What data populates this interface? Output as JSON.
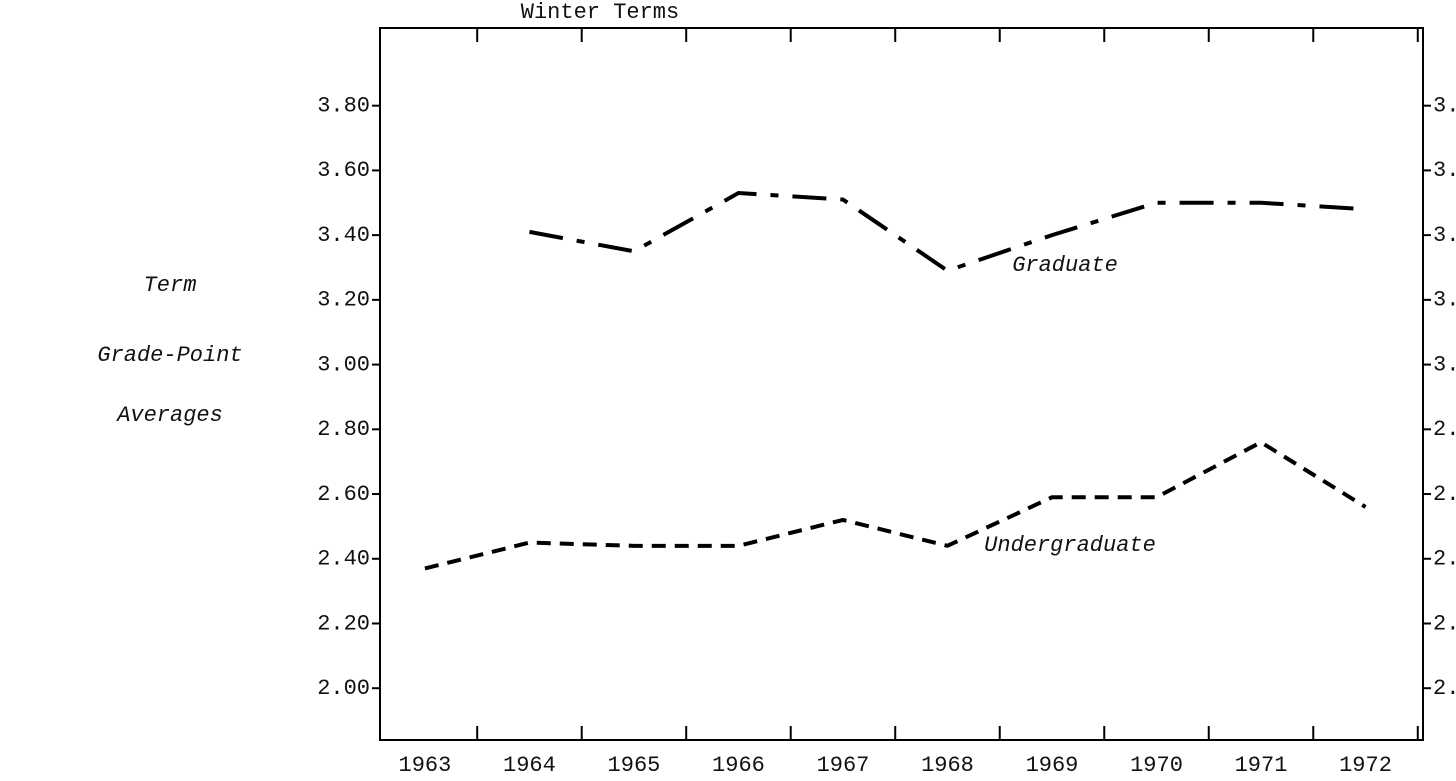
{
  "chart_data": {
    "type": "line",
    "title": "Winter Terms",
    "ylabel": [
      "Term",
      "Grade-Point",
      "Averages"
    ],
    "x": [
      1963,
      1964,
      1965,
      1966,
      1967,
      1968,
      1969,
      1970,
      1971,
      1972
    ],
    "xlim": [
      1962.57,
      1972.55
    ],
    "xticks": [
      1963,
      1964,
      1965,
      1966,
      1967,
      1968,
      1969,
      1970,
      1971,
      1972
    ],
    "ylim": [
      1.84,
      4.04
    ],
    "yticks": [
      {
        "value": 2.0,
        "label": "2.00"
      },
      {
        "value": 2.2,
        "label": "2.20"
      },
      {
        "value": 2.4,
        "label": "2.40"
      },
      {
        "value": 2.6,
        "label": "2.60"
      },
      {
        "value": 2.8,
        "label": "2.80"
      },
      {
        "value": 3.0,
        "label": "3.00"
      },
      {
        "value": 3.2,
        "label": "3.20"
      },
      {
        "value": 3.4,
        "label": "3.40"
      },
      {
        "value": 3.6,
        "label": "3.60"
      },
      {
        "value": 3.8,
        "label": "3.80"
      }
    ],
    "grid": false,
    "series": [
      {
        "name": "Graduate",
        "color": "#000000",
        "style": "dash-dot",
        "values": [
          null,
          3.41,
          3.35,
          3.53,
          3.51,
          3.29,
          3.4,
          3.5,
          3.5,
          3.48
        ]
      },
      {
        "name": "Undergraduate",
        "color": "#000000",
        "style": "dashed",
        "values": [
          2.37,
          2.45,
          2.44,
          2.44,
          2.52,
          2.44,
          2.59,
          2.59,
          2.76,
          2.56
        ]
      }
    ]
  }
}
